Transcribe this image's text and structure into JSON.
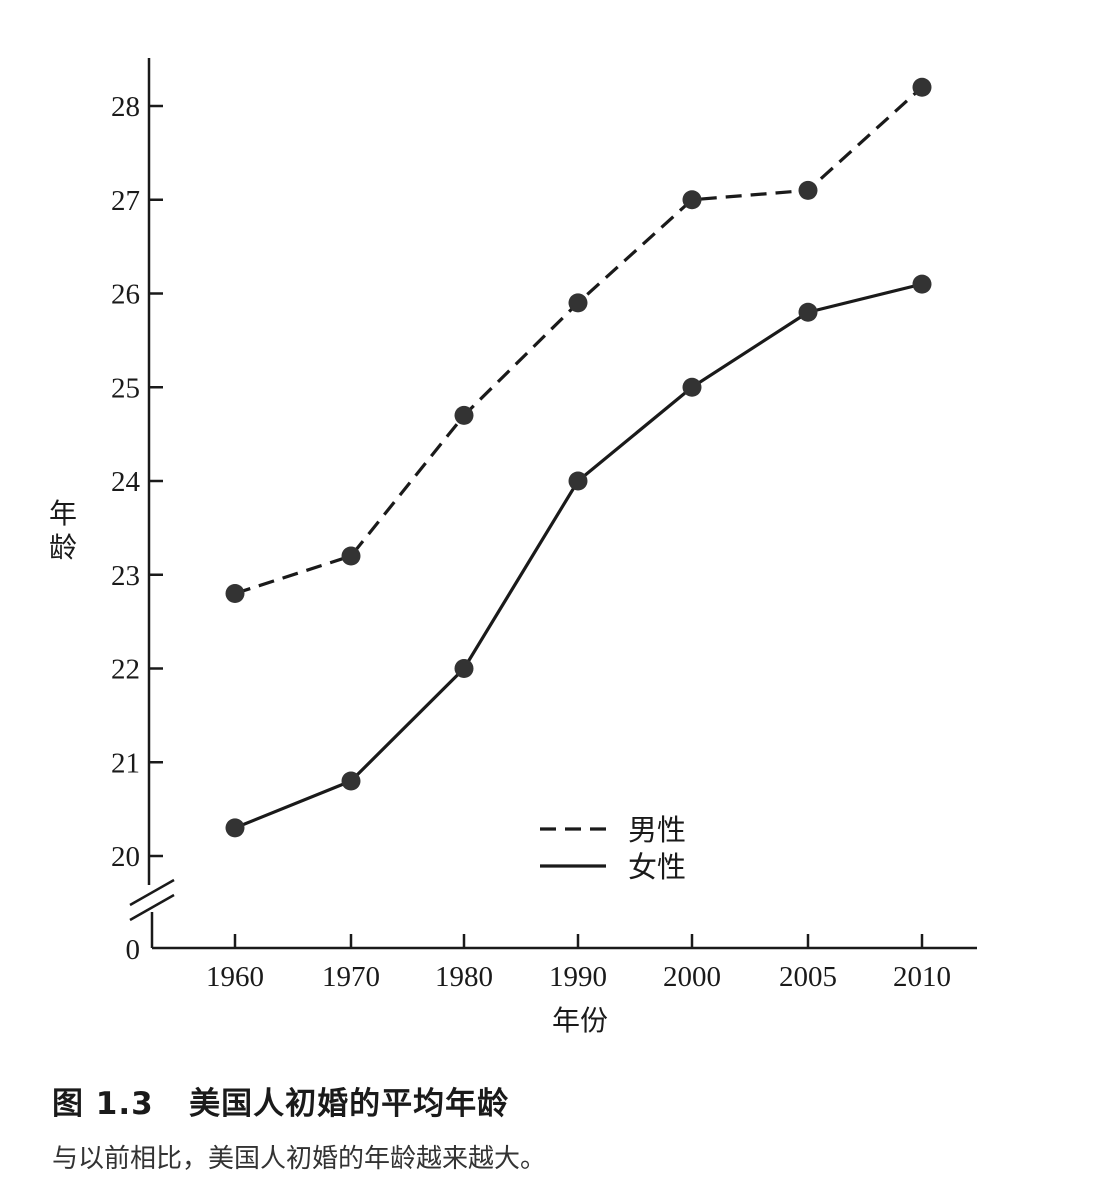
{
  "chart_data": {
    "type": "line",
    "categories": [
      "1960",
      "1970",
      "1980",
      "1990",
      "2000",
      "2005",
      "2010"
    ],
    "series": [
      {
        "name": "男性",
        "style": "dashed",
        "values": [
          22.8,
          23.2,
          24.7,
          25.9,
          27.0,
          27.1,
          28.2
        ]
      },
      {
        "name": "女性",
        "style": "solid",
        "values": [
          20.3,
          20.8,
          22.0,
          24.0,
          25.0,
          25.8,
          26.1
        ]
      }
    ],
    "xlabel": "年份",
    "ylabel": "年龄",
    "y_ticks": [
      "20",
      "21",
      "22",
      "23",
      "24",
      "25",
      "26",
      "27",
      "28"
    ],
    "y_zero_label": "0",
    "ylim": [
      20,
      28.5
    ],
    "y_axis_break": true,
    "grid": false,
    "legend_position": "bottom-center",
    "colors": {
      "line": "#1a1a1a",
      "marker": "#333333"
    }
  },
  "caption": {
    "title": "图 1.3   美国人初婚的平均年龄",
    "text": "与以前相比，美国人初婚的年龄越来越大。"
  }
}
